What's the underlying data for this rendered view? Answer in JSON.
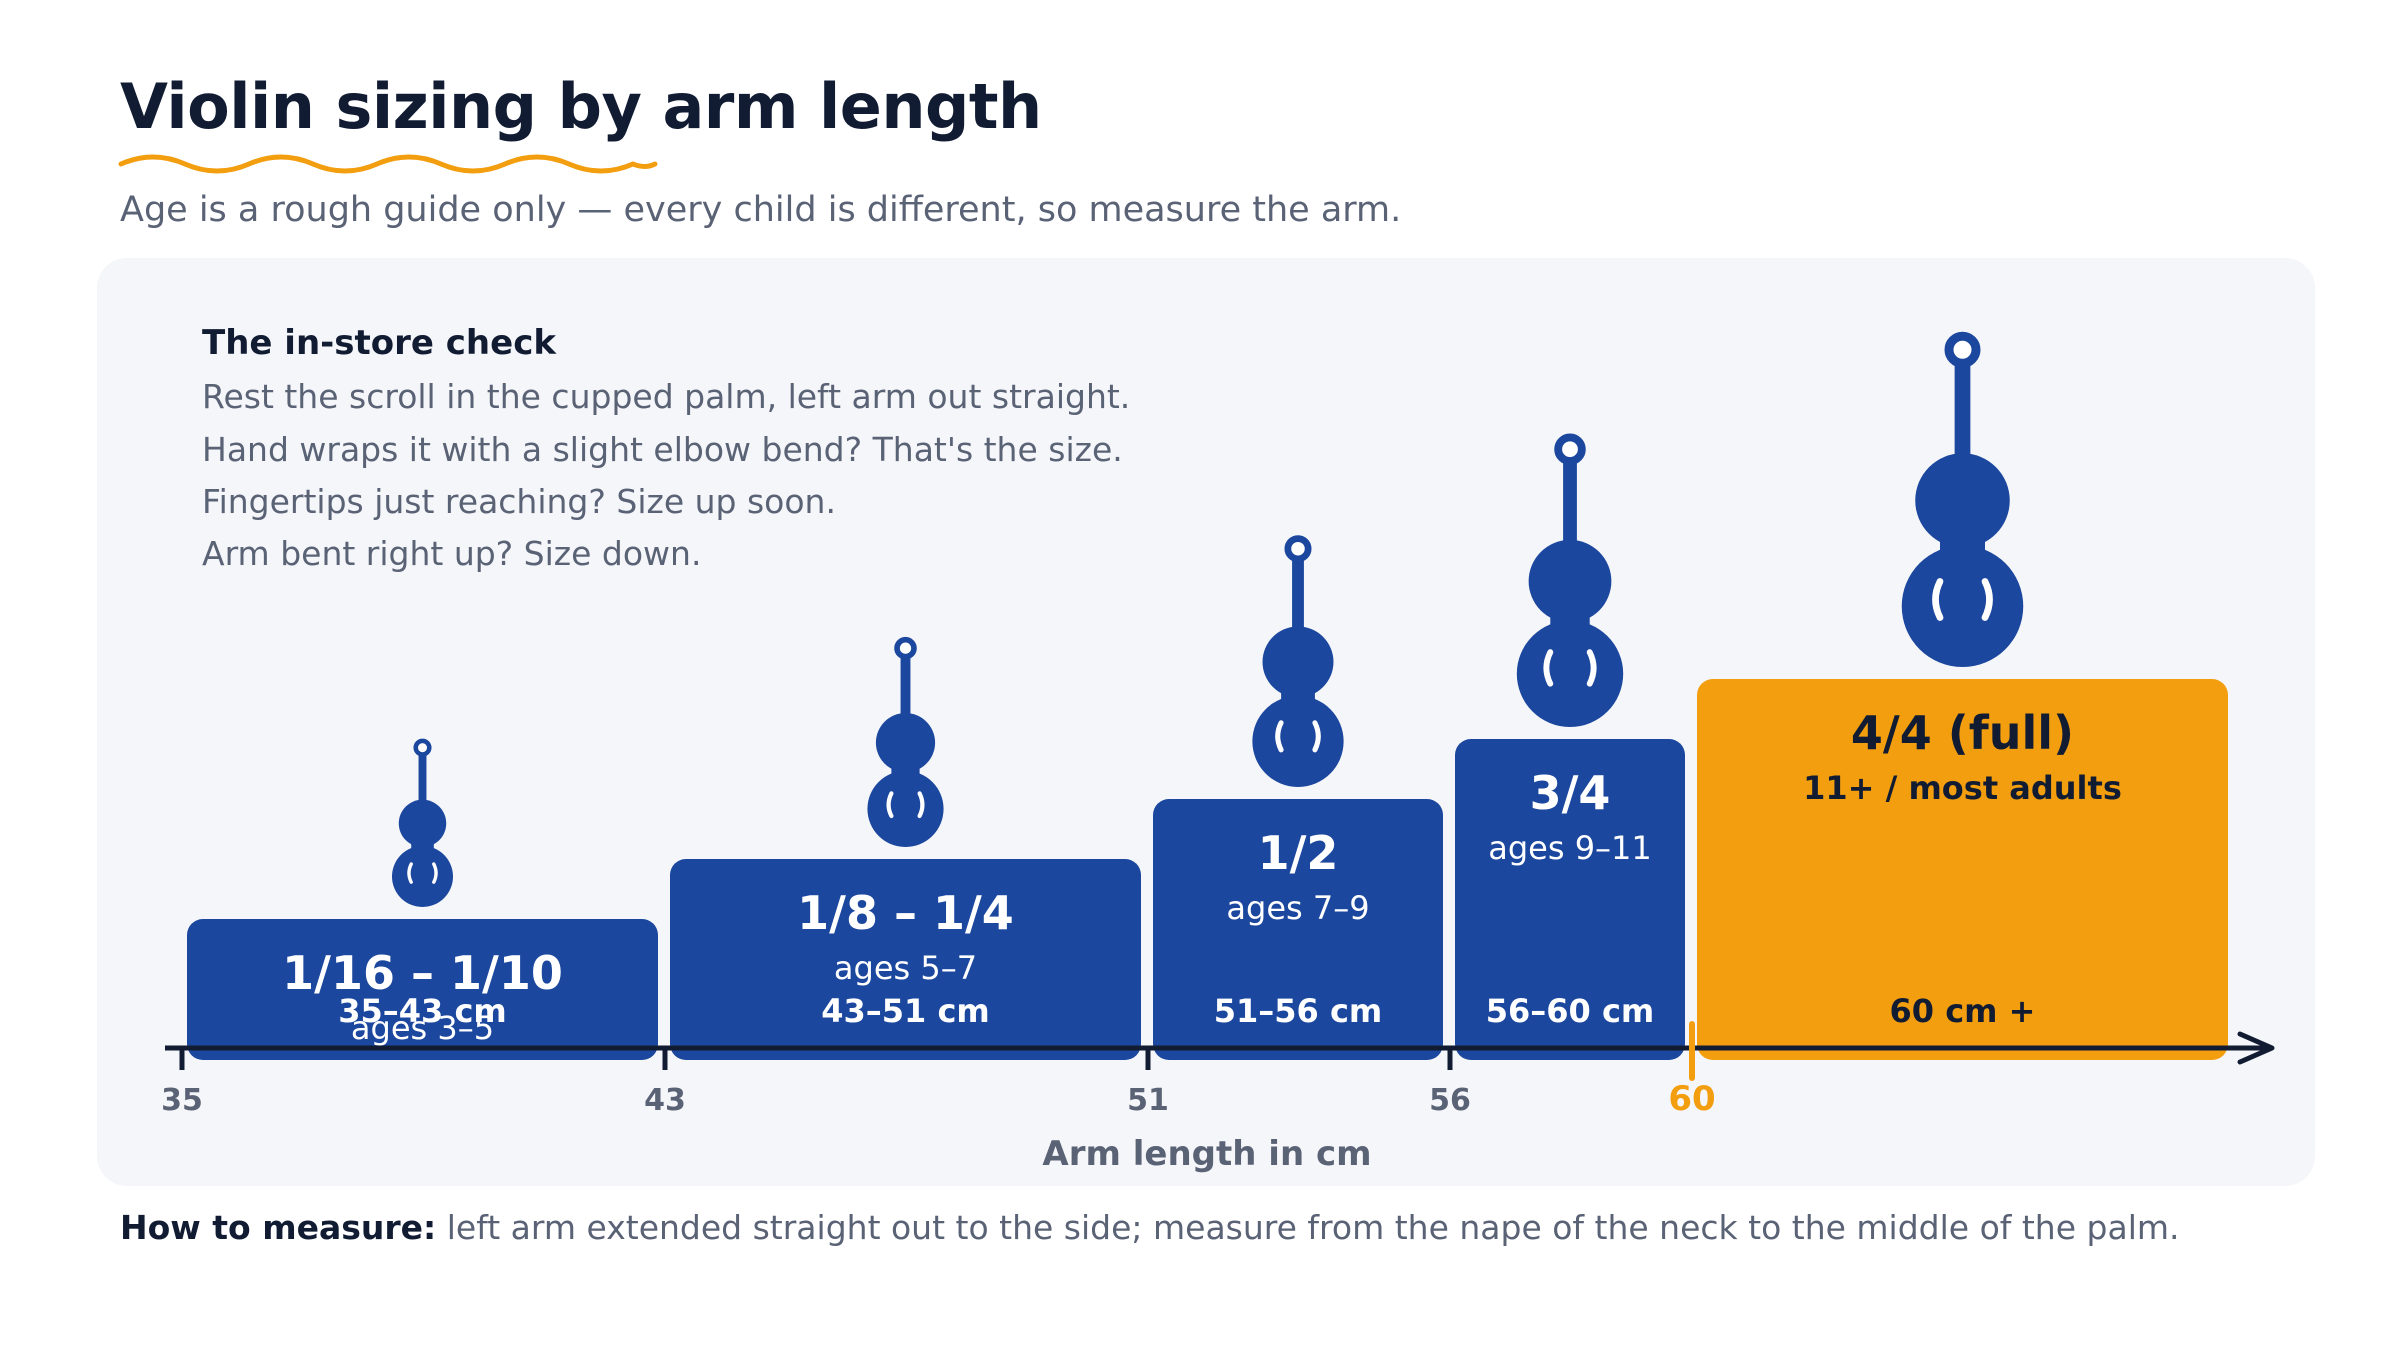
{
  "title": "Violin sizing by arm length",
  "subtitle": "Age is a rough guide only — every child is different, so measure the arm.",
  "instore": {
    "title": "The in-store check",
    "lines": [
      "Rest the scroll in the cupped palm, left arm out straight.",
      "Hand wraps it with a slight elbow bend? That's the size.",
      "Fingertips just reaching? Size up soon.",
      "Arm bent right up? Size down."
    ]
  },
  "footer": {
    "label": "How to measure:",
    "text": "left arm extended straight out to the side; measure from the nape of the neck to the middle of the palm."
  },
  "colors": {
    "bar": "#1b479e",
    "highlight": "#f29e0f",
    "axis": "#111c33",
    "muted": "#5a6275",
    "panel": "#f5f6f9"
  },
  "chart_data": {
    "type": "bar",
    "xlabel": "Arm length in cm",
    "ticks": [
      {
        "value": 35,
        "label": "35"
      },
      {
        "value": 43,
        "label": "43"
      },
      {
        "value": 51,
        "label": "51"
      },
      {
        "value": 56,
        "label": "56"
      },
      {
        "value": 60,
        "label": "60",
        "highlight": true
      }
    ],
    "categories": [
      {
        "size": "1/16 – 1/10",
        "ages": "ages 3–5",
        "range_label": "35–43 cm",
        "min_cm": 35,
        "max_cm": 43,
        "level": 1,
        "highlight": false
      },
      {
        "size": "1/8 – 1/4",
        "ages": "ages 5–7",
        "range_label": "43–51 cm",
        "min_cm": 43,
        "max_cm": 51,
        "level": 2,
        "highlight": false
      },
      {
        "size": "1/2",
        "ages": "ages 7–9",
        "range_label": "51–56 cm",
        "min_cm": 51,
        "max_cm": 56,
        "level": 3,
        "highlight": false
      },
      {
        "size": "3/4",
        "ages": "ages 9–11",
        "range_label": "56–60 cm",
        "min_cm": 56,
        "max_cm": 60,
        "level": 4,
        "highlight": false
      },
      {
        "size": "4/4 (full)",
        "ages": "11+ / most adults",
        "range_label": "60 cm +",
        "min_cm": 60,
        "max_cm": null,
        "level": 5,
        "highlight": true
      }
    ]
  }
}
